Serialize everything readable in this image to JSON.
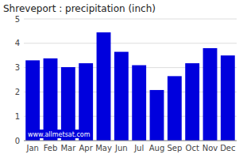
{
  "chart_data": {
    "type": "bar",
    "title": "Shreveport : precipitation (inch)",
    "categories": [
      "Jan",
      "Feb",
      "Mar",
      "Apr",
      "May",
      "Jun",
      "Jul",
      "Aug",
      "Sep",
      "Oct",
      "Nov",
      "Dec"
    ],
    "values": [
      3.3,
      3.38,
      3.02,
      3.18,
      4.45,
      3.65,
      3.1,
      2.08,
      2.65,
      3.18,
      3.8,
      3.5
    ],
    "color": "#0000dd",
    "ylim": [
      0,
      5
    ],
    "yticks": [
      0,
      1,
      2,
      3,
      4,
      5
    ],
    "grid": true,
    "annotations": [
      "www.allmetsat.com"
    ]
  }
}
